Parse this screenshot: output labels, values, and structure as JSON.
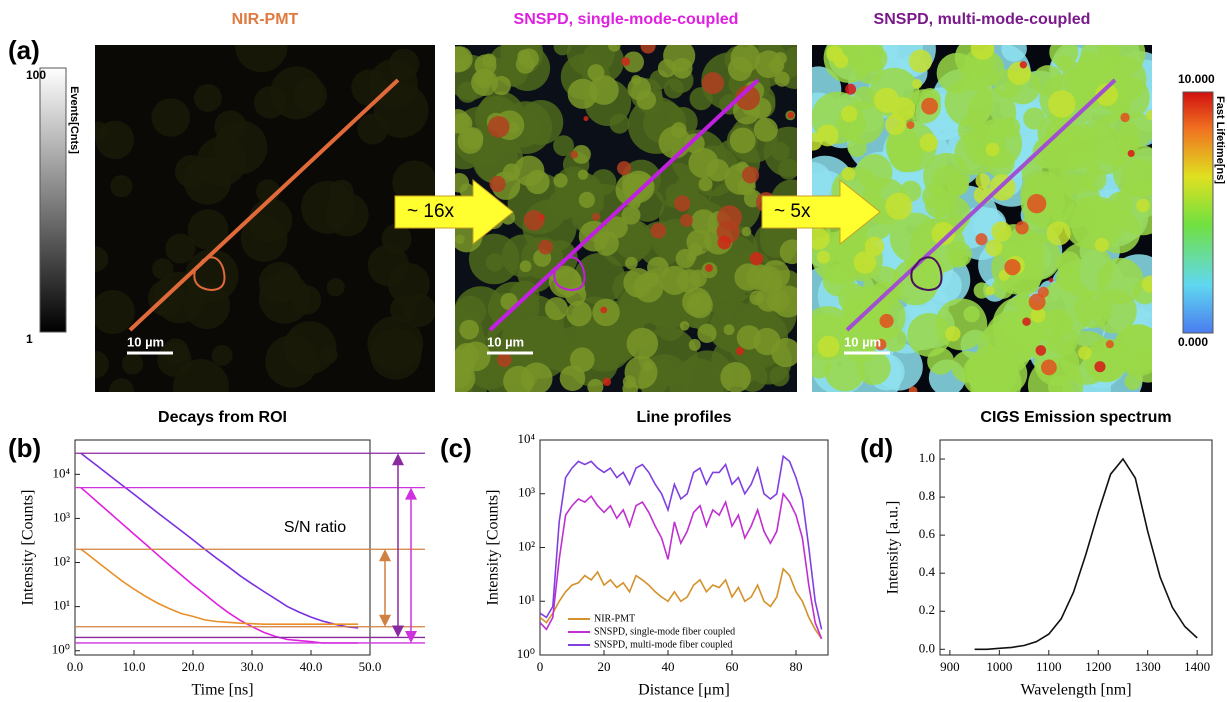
{
  "panel_labels": [
    "(a)",
    "(b)",
    "(c)",
    "(d)"
  ],
  "images": [
    {
      "title": "NIR-PMT",
      "scale_bar": "10 µm"
    },
    {
      "title": "SNSPD, single-mode-coupled",
      "scale_bar": "10 µm"
    },
    {
      "title": "SNSPD, multi-mode-coupled",
      "scale_bar": "10 µm"
    }
  ],
  "arrows": [
    "~ 16x",
    "~ 5x"
  ],
  "colorbars": [
    {
      "label": "Events[Cnts]",
      "max": 100,
      "min": 1
    },
    {
      "label": "Fast Lifetime[ns]",
      "max": {
        "value": 10,
        "label": "10.000"
      },
      "min": {
        "value": 0,
        "label": "0.000"
      }
    }
  ],
  "chart_data": [
    {
      "type": "line",
      "title": "Decays from ROI",
      "xlabel": "Time [ns]",
      "ylabel": "Intensity [Counts]",
      "annotation": "S/N ratio",
      "log_y": true,
      "x": [
        1,
        2,
        4,
        6,
        8,
        10,
        12,
        14,
        16,
        18,
        20,
        22,
        24,
        26,
        28,
        30,
        32,
        34,
        36,
        38,
        40,
        42,
        44,
        46,
        48
      ],
      "series": [
        {
          "name": "SNSPD, multi-mode fiber coupled",
          "color": "#7a30e0",
          "values": [
            30000,
            23600,
            14700,
            9120,
            5660,
            3520,
            2180,
            1350,
            840,
            525,
            325,
            200,
            125,
            80,
            50,
            33,
            22,
            15,
            10,
            7.5,
            5.8,
            4.7,
            4,
            3.5,
            3.3
          ]
        },
        {
          "name": "SNSPD, single-mode fiber coupled",
          "color": "#e020e0",
          "values": [
            5000,
            3820,
            2220,
            1300,
            755,
            440,
            257,
            150,
            88,
            52,
            31,
            19,
            11.5,
            7.3,
            4.9,
            3.5,
            2.6,
            2.1,
            1.8,
            1.7,
            1.6,
            1.5,
            1.5,
            1.5,
            1.5
          ]
        },
        {
          "name": "NIR-PMT",
          "color": "#e8902a",
          "values": [
            200,
            160,
            98,
            61,
            38,
            25,
            17,
            12,
            9,
            7,
            6,
            5,
            4.6,
            4.4,
            4.2,
            4.1,
            4,
            4,
            4,
            4,
            4,
            4,
            4,
            4,
            4
          ]
        }
      ],
      "hlines": [
        {
          "value": 30000,
          "color": "#8a2aa0"
        },
        {
          "value": 5000,
          "color": "#d030e0"
        },
        {
          "value": 200,
          "color": "#d08040"
        },
        {
          "value": 3.5,
          "color": "#d08040"
        },
        {
          "value": 2,
          "color": "#8a2aa0"
        },
        {
          "value": 1.5,
          "color": "#d030e0"
        }
      ],
      "xlim": [
        0,
        50
      ],
      "xticks": [
        {
          "value": 0,
          "label": "0.0"
        },
        {
          "value": 10,
          "label": "10.0"
        },
        {
          "value": 20,
          "label": "20.0"
        },
        {
          "value": 30,
          "label": "30.0"
        },
        {
          "value": 40,
          "label": "40.0"
        },
        {
          "value": 50,
          "label": "50.0"
        }
      ],
      "ylim": [
        0.8,
        60000
      ],
      "yticks": [
        {
          "value": 1,
          "label": "10⁰"
        },
        {
          "value": 10,
          "label": "10¹"
        },
        {
          "value": 100,
          "label": "10²"
        },
        {
          "value": 1000,
          "label": "10³"
        },
        {
          "value": 10000,
          "label": "10⁴"
        }
      ]
    },
    {
      "type": "line",
      "title": "Line profiles",
      "xlabel": "Distance [μm]",
      "ylabel": "Intensity [Counts]",
      "log_y": true,
      "legend": "lower left",
      "x": [
        0,
        2,
        4,
        6,
        8,
        10,
        12,
        14,
        16,
        18,
        20,
        22,
        24,
        26,
        28,
        30,
        32,
        34,
        36,
        38,
        40,
        42,
        44,
        46,
        48,
        50,
        52,
        54,
        56,
        58,
        60,
        62,
        64,
        66,
        68,
        70,
        72,
        74,
        76,
        78,
        80,
        82,
        84,
        86,
        88
      ],
      "series": [
        {
          "name": "NIR-PMT",
          "color": "#d4922a",
          "values": [
            5,
            4,
            6,
            10,
            15,
            20,
            22,
            30,
            25,
            35,
            20,
            25,
            18,
            22,
            15,
            30,
            25,
            20,
            15,
            12,
            10,
            15,
            10,
            12,
            20,
            25,
            15,
            20,
            18,
            25,
            12,
            18,
            10,
            12,
            20,
            10,
            8,
            12,
            40,
            30,
            15,
            10,
            5,
            3,
            2
          ]
        },
        {
          "name": "SNSPD, single-mode fiber coupled",
          "color": "#c030d0",
          "values": [
            4,
            3,
            5,
            60,
            400,
            600,
            800,
            700,
            900,
            600,
            450,
            600,
            350,
            500,
            250,
            600,
            700,
            450,
            250,
            150,
            60,
            300,
            120,
            200,
            450,
            600,
            250,
            500,
            400,
            700,
            250,
            400,
            150,
            250,
            500,
            200,
            120,
            200,
            1000,
            700,
            400,
            150,
            20,
            4,
            2
          ]
        },
        {
          "name": "SNSPD, multi-mode fiber coupled",
          "color": "#8040e0",
          "values": [
            6,
            5,
            8,
            300,
            2000,
            3000,
            4000,
            3500,
            4000,
            3000,
            2500,
            3000,
            2000,
            2500,
            1500,
            3000,
            3500,
            2500,
            1500,
            1000,
            500,
            1500,
            800,
            1000,
            2500,
            3000,
            1500,
            2500,
            2500,
            3500,
            1500,
            2000,
            1000,
            1500,
            3000,
            1000,
            800,
            1000,
            5000,
            4000,
            2000,
            800,
            100,
            10,
            3
          ]
        }
      ],
      "xlim": [
        0,
        90
      ],
      "xticks": [
        0,
        20,
        40,
        60,
        80
      ],
      "ylim": [
        1,
        10000
      ],
      "yticks": [
        {
          "value": 1,
          "label": "10⁰"
        },
        {
          "value": 10,
          "label": "10¹"
        },
        {
          "value": 100,
          "label": "10²"
        },
        {
          "value": 1000,
          "label": "10³"
        },
        {
          "value": 10000,
          "label": "10⁴"
        }
      ]
    },
    {
      "type": "line",
      "title": "CIGS Emission spectrum",
      "xlabel": "Wavelength [nm]",
      "ylabel": "Intensity [a.u.]",
      "x": [
        950,
        975,
        1000,
        1025,
        1050,
        1075,
        1100,
        1125,
        1150,
        1175,
        1200,
        1225,
        1250,
        1275,
        1300,
        1325,
        1350,
        1375,
        1400
      ],
      "series": [
        {
          "color": "#111111",
          "values": [
            0,
            0,
            0.005,
            0.01,
            0.02,
            0.04,
            0.08,
            0.16,
            0.3,
            0.5,
            0.72,
            0.92,
            1.0,
            0.9,
            0.62,
            0.38,
            0.22,
            0.12,
            0.06
          ]
        }
      ],
      "xlim": [
        880,
        1430
      ],
      "xticks": [
        900,
        1000,
        1100,
        1200,
        1300,
        1400
      ],
      "ylim": [
        -0.03,
        1.1
      ],
      "yticks": [
        {
          "value": 0,
          "label": "0.0"
        },
        {
          "value": 0.2,
          "label": "0.2"
        },
        {
          "value": 0.4,
          "label": "0.4"
        },
        {
          "value": 0.6,
          "label": "0.6"
        },
        {
          "value": 0.8,
          "label": "0.8"
        },
        {
          "value": 1.0,
          "label": "1.0"
        }
      ]
    }
  ]
}
